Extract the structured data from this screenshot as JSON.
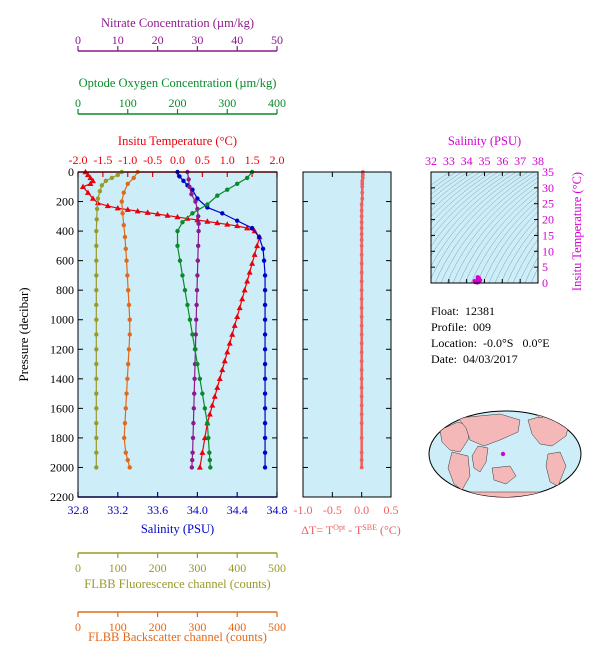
{
  "chart_data": [
    {
      "type": "line",
      "panel": "main-profile",
      "ylabel": "Pressure (decibar)",
      "y_ticks": [
        "0",
        "200",
        "400",
        "600",
        "800",
        "1000",
        "1200",
        "1400",
        "1600",
        "1800",
        "2000",
        "2200"
      ],
      "ylim": [
        2200,
        0
      ],
      "grid": false,
      "axes": {
        "temperature": {
          "label": "Insitu Temperature (°C)",
          "ticks": [
            "-2.0",
            "-1.5",
            "-1.0",
            "-0.5",
            "0.0",
            "0.5",
            "1.0",
            "1.5",
            "2.0"
          ],
          "range": [
            -2.0,
            2.0
          ],
          "color": "#e8000b"
        },
        "salinity": {
          "label": "Salinity (PSU)",
          "ticks": [
            "32.8",
            "33.2",
            "33.6",
            "34.0",
            "34.4",
            "34.8"
          ],
          "range": [
            32.8,
            34.8
          ],
          "color": "#0000cc"
        },
        "nitrate": {
          "label": "Nitrate Concentration (µm/kg)",
          "ticks": [
            "0",
            "10",
            "20",
            "30",
            "40",
            "50"
          ],
          "range": [
            0,
            50
          ],
          "color": "#8b1a8b"
        },
        "oxygen": {
          "label": "Optode Oxygen Concentration (µm/kg)",
          "ticks": [
            "0",
            "100",
            "200",
            "300",
            "400"
          ],
          "range": [
            0,
            400
          ],
          "color": "#0a8a2a"
        },
        "fluorescence": {
          "label": "FLBB Fluorescence channel (counts)",
          "ticks": [
            "0",
            "100",
            "200",
            "300",
            "400",
            "500"
          ],
          "range": [
            0,
            500
          ],
          "color": "#9a9a2a"
        },
        "backscatter": {
          "label": "FLBB Backscatter channel (counts)",
          "ticks": [
            "0",
            "100",
            "200",
            "300",
            "400",
            "500"
          ],
          "range": [
            0,
            500
          ],
          "color": "#e06a1a"
        }
      },
      "series": [
        {
          "axis": "temperature",
          "marker": "triangle",
          "color": "#e8000b",
          "x": [
            -1.85,
            -1.8,
            -1.75,
            -1.7,
            -1.75,
            -1.9,
            -1.8,
            -1.7,
            -1.6,
            -1.4,
            -1.2,
            -1.0,
            -0.8,
            -0.6,
            -0.4,
            -0.2,
            0.0,
            0.2,
            0.4,
            0.6,
            0.8,
            1.0,
            1.2,
            1.4,
            1.55,
            1.65,
            1.6,
            1.55,
            1.5,
            1.45,
            1.4,
            1.35,
            1.3,
            1.25,
            1.2,
            1.15,
            1.1,
            1.05,
            1.0,
            0.95,
            0.9,
            0.85,
            0.8,
            0.75,
            0.7,
            0.65,
            0.6,
            0.55,
            0.5,
            0.45
          ],
          "y": [
            0,
            20,
            40,
            60,
            80,
            100,
            140,
            180,
            210,
            230,
            245,
            255,
            265,
            275,
            285,
            295,
            305,
            315,
            325,
            335,
            345,
            355,
            365,
            380,
            400,
            440,
            500,
            560,
            620,
            680,
            740,
            800,
            860,
            920,
            980,
            1040,
            1100,
            1160,
            1220,
            1280,
            1340,
            1400,
            1460,
            1520,
            1580,
            1640,
            1700,
            1800,
            1900,
            2000
          ]
        },
        {
          "axis": "salinity",
          "marker": "circle",
          "color": "#0000cc",
          "x": [
            33.8,
            33.82,
            33.86,
            33.9,
            33.95,
            34.0,
            34.1,
            34.25,
            34.4,
            34.55,
            34.62,
            34.66,
            34.67,
            34.68,
            34.68,
            34.68,
            34.68,
            34.68,
            34.68,
            34.68,
            34.68,
            34.68,
            34.68,
            34.68,
            34.68,
            34.68,
            34.68
          ],
          "y": [
            0,
            30,
            60,
            90,
            120,
            180,
            240,
            280,
            330,
            380,
            440,
            520,
            600,
            700,
            800,
            900,
            1000,
            1100,
            1200,
            1300,
            1400,
            1500,
            1600,
            1700,
            1800,
            1900,
            2000
          ]
        },
        {
          "axis": "nitrate",
          "marker": "circle",
          "color": "#8b1a8b",
          "x": [
            27.5,
            27.8,
            28.0,
            28.5,
            29.5,
            30.0,
            30.2,
            30.3,
            30.3,
            30.2,
            30.1,
            30.0,
            29.9,
            29.8,
            29.7,
            29.6,
            29.5,
            29.4,
            29.3,
            29.2,
            29.1,
            29.0,
            28.9,
            28.8,
            28.7,
            28.6
          ],
          "y": [
            0,
            50,
            100,
            150,
            200,
            250,
            300,
            350,
            400,
            500,
            600,
            700,
            800,
            900,
            1000,
            1100,
            1200,
            1300,
            1400,
            1500,
            1600,
            1700,
            1800,
            1900,
            1950,
            2000
          ]
        },
        {
          "axis": "oxygen",
          "marker": "circle",
          "color": "#0a8a2a",
          "x": [
            350,
            340,
            320,
            300,
            280,
            260,
            230,
            210,
            200,
            200,
            205,
            210,
            215,
            220,
            225,
            230,
            235,
            240,
            245,
            250,
            255,
            260,
            262,
            264,
            265,
            266
          ],
          "y": [
            0,
            40,
            80,
            120,
            160,
            220,
            280,
            340,
            400,
            500,
            600,
            700,
            800,
            900,
            1000,
            1100,
            1200,
            1300,
            1400,
            1500,
            1600,
            1700,
            1800,
            1900,
            1950,
            2000
          ]
        },
        {
          "axis": "fluorescence",
          "marker": "circle",
          "color": "#9a9a2a",
          "x": [
            110,
            100,
            85,
            70,
            60,
            55,
            50,
            48,
            47,
            46,
            46,
            46,
            46,
            46,
            46,
            46,
            46,
            46,
            46,
            46,
            46,
            46,
            46,
            46,
            46,
            46
          ],
          "y": [
            0,
            20,
            40,
            60,
            90,
            130,
            180,
            250,
            320,
            400,
            500,
            600,
            700,
            800,
            900,
            1000,
            1100,
            1200,
            1300,
            1400,
            1500,
            1600,
            1700,
            1800,
            1900,
            2000
          ]
        },
        {
          "axis": "backscatter",
          "marker": "circle",
          "color": "#e06a1a",
          "x": [
            150,
            140,
            125,
            115,
            110,
            112,
            115,
            118,
            120,
            122,
            124,
            126,
            128,
            130,
            130,
            128,
            126,
            124,
            122,
            120,
            118,
            116,
            120,
            125,
            130
          ],
          "y": [
            0,
            40,
            80,
            140,
            200,
            280,
            360,
            440,
            520,
            600,
            700,
            800,
            900,
            1000,
            1100,
            1200,
            1300,
            1400,
            1500,
            1600,
            1700,
            1800,
            1900,
            1950,
            2000
          ]
        }
      ]
    },
    {
      "type": "line",
      "panel": "delta-t",
      "xlabel_parts": {
        "prefix": "ΔT= T",
        "sup1": "Opt",
        "mid": " - T",
        "sup2": "SBE",
        "suffix": " (°C)"
      },
      "x_ticks": [
        "-1.0",
        "-0.5",
        "0.0",
        "0.5"
      ],
      "xlim": [
        -1.0,
        0.5
      ],
      "ylim": [
        2200,
        0
      ],
      "color": "#f06060",
      "series": [
        {
          "x": [
            0.02,
            0.02,
            0.02,
            0.01,
            0.01,
            0.01,
            0.01,
            0.01,
            0.0,
            0.0,
            0.0,
            0.0,
            0.0,
            0.0,
            0.0,
            0.0,
            0.0,
            0.0,
            0.0,
            0.0,
            0.0,
            0.0,
            0.0,
            0.0,
            0.0,
            0.0,
            0.0,
            0.0,
            0.0,
            0.0,
            0.0,
            0.0,
            0.0,
            0.0,
            0.0,
            0.0,
            0.0,
            0.0,
            0.0,
            0.0
          ],
          "y": [
            0,
            20,
            40,
            60,
            80,
            100,
            140,
            180,
            220,
            260,
            300,
            340,
            380,
            420,
            460,
            500,
            560,
            620,
            680,
            740,
            800,
            860,
            920,
            980,
            1040,
            1100,
            1160,
            1220,
            1280,
            1340,
            1400,
            1460,
            1520,
            1580,
            1640,
            1700,
            1800,
            1900,
            1950,
            2000
          ]
        }
      ]
    },
    {
      "type": "scatter",
      "panel": "ts-diagram",
      "title": "Salinity (PSU)",
      "x_ticks": [
        "32",
        "33",
        "34",
        "35",
        "36",
        "37",
        "38"
      ],
      "xlim": [
        32,
        38
      ],
      "ylabel": "Insitu Temperature (°C)",
      "y_ticks": [
        "0",
        "5",
        "10",
        "15",
        "20",
        "25",
        "30",
        "35"
      ],
      "ylim": [
        0,
        35
      ],
      "color": "#d400d4",
      "points": {
        "x": [
          34.6,
          34.62,
          34.65,
          34.66,
          34.68,
          34.68,
          34.6,
          34.5,
          34.45,
          34.7,
          34.75,
          34.62
        ],
        "y": [
          0.4,
          0.8,
          1.2,
          1.5,
          1.6,
          1.0,
          0.2,
          0.3,
          0.6,
          0.4,
          0.9,
          1.8
        ]
      }
    }
  ],
  "info": {
    "float_line": "Float:  12381",
    "profile_line": "Profile:  009",
    "location_line": "Location:  -0.0°S   0.0°E",
    "date_line": "Date:  04/03/2017"
  },
  "map": {
    "marker_label": ""
  }
}
